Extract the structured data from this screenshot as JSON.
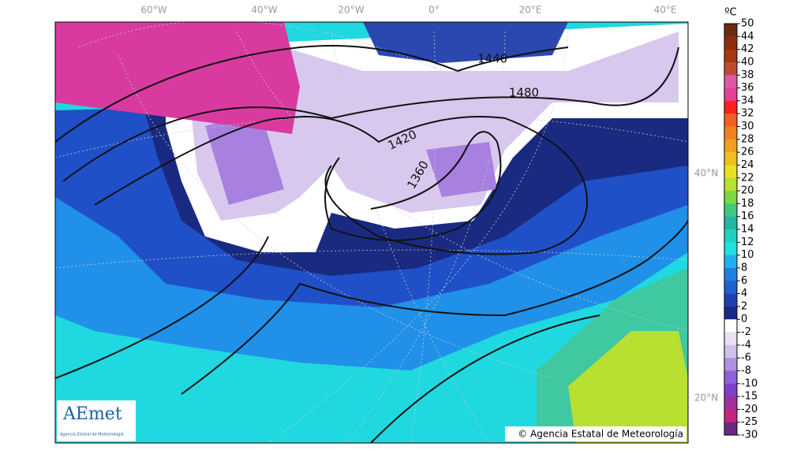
{
  "map": {
    "longitude_labels": [
      "60°W",
      "40°W",
      "20°W",
      "0°",
      "20°E",
      "40°E"
    ],
    "latitude_labels": [
      "40°N",
      "20°N"
    ],
    "contour_labels": [
      "1440",
      "1480",
      "1420",
      "1360"
    ],
    "logo": {
      "name": "AEmet",
      "subtitle": "Agencia Estatal de Meteorología"
    },
    "copyright": "© Agencia Estatal de Meteorología"
  },
  "colorbar": {
    "unit": "ºC",
    "ticks": [
      50,
      44,
      42,
      40,
      38,
      36,
      34,
      32,
      30,
      28,
      26,
      24,
      22,
      20,
      18,
      16,
      14,
      12,
      10,
      8,
      6,
      4,
      2,
      0,
      -2,
      -4,
      -6,
      -8,
      -10,
      -15,
      -20,
      -25,
      -30
    ],
    "colors": [
      "#6b2a10",
      "#8b2e0e",
      "#a33a10",
      "#c04a30",
      "#d85aa8",
      "#e8409a",
      "#ff2020",
      "#f06020",
      "#f08020",
      "#f0a020",
      "#f0c020",
      "#e8e020",
      "#b8e030",
      "#80d840",
      "#40c880",
      "#20b8a0",
      "#20d0c0",
      "#20e0e0",
      "#20b0f0",
      "#2080e0",
      "#2060d0",
      "#2040b0",
      "#1a2a80",
      "#ffffff",
      "#e8e0f4",
      "#d0c0ec",
      "#b090e0",
      "#9060d8",
      "#8040c8",
      "#a030a0",
      "#c02880",
      "#6a2a80"
    ]
  }
}
